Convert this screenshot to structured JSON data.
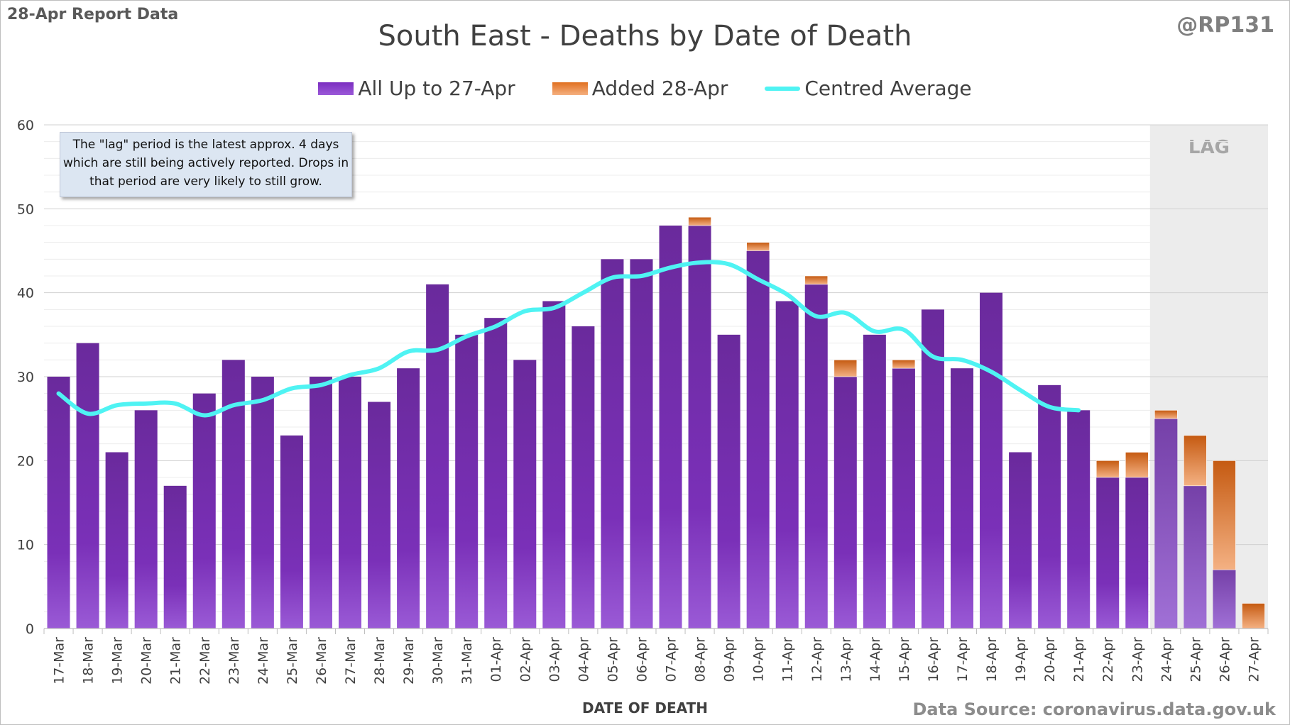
{
  "header": {
    "report_label": "28-Apr Report Data",
    "handle": "@RP131"
  },
  "note": {
    "text": "The \"lag\" period is the latest approx. 4 days which are still being actively reported.  Drops in that period are very likely to still grow."
  },
  "footer": {
    "source": "Data Source: coronavirus.data.gov.uk"
  },
  "chart_data": {
    "type": "bar",
    "stacked": true,
    "title": "South East - Deaths by Date of Death",
    "xlabel": "DATE OF DEATH",
    "ylabel": "",
    "ylim": [
      0,
      60
    ],
    "yticks": [
      0,
      10,
      20,
      30,
      40,
      50,
      60
    ],
    "grid": true,
    "legend_position": "top-center",
    "lag_label": "LAG",
    "lag_categories": [
      "24-Apr",
      "25-Apr",
      "26-Apr",
      "27-Apr"
    ],
    "categories": [
      "17-Mar",
      "18-Mar",
      "19-Mar",
      "20-Mar",
      "21-Mar",
      "22-Mar",
      "23-Mar",
      "24-Mar",
      "25-Mar",
      "26-Mar",
      "27-Mar",
      "28-Mar",
      "29-Mar",
      "30-Mar",
      "31-Mar",
      "01-Apr",
      "02-Apr",
      "03-Apr",
      "04-Apr",
      "05-Apr",
      "06-Apr",
      "07-Apr",
      "08-Apr",
      "09-Apr",
      "10-Apr",
      "11-Apr",
      "12-Apr",
      "13-Apr",
      "14-Apr",
      "15-Apr",
      "16-Apr",
      "17-Apr",
      "18-Apr",
      "19-Apr",
      "20-Apr",
      "21-Apr",
      "22-Apr",
      "23-Apr",
      "24-Apr",
      "25-Apr",
      "26-Apr",
      "27-Apr"
    ],
    "series": [
      {
        "name": "All Up to 27-Apr",
        "color": "#7030a0",
        "values": [
          30,
          34,
          21,
          26,
          17,
          28,
          32,
          30,
          23,
          30,
          30,
          27,
          31,
          41,
          35,
          37,
          32,
          39,
          36,
          44,
          44,
          48,
          48,
          35,
          45,
          39,
          41,
          30,
          35,
          31,
          38,
          31,
          40,
          21,
          29,
          26,
          18,
          18,
          25,
          17,
          7,
          0
        ]
      },
      {
        "name": "Added 28-Apr",
        "color": "#ed7d31",
        "values": [
          0,
          0,
          0,
          0,
          0,
          0,
          0,
          0,
          0,
          0,
          0,
          0,
          0,
          0,
          0,
          0,
          0,
          0,
          0,
          0,
          0,
          0,
          1,
          0,
          1,
          0,
          1,
          2,
          0,
          1,
          0,
          0,
          0,
          0,
          0,
          0,
          2,
          3,
          1,
          6,
          13,
          3
        ]
      },
      {
        "name": "Centred Average",
        "type": "line",
        "color": "#4ff3f3",
        "values": [
          28,
          25.6,
          26.6,
          26.8,
          26.8,
          25.4,
          26.6,
          27.2,
          28.6,
          29,
          30.2,
          31,
          33,
          33.2,
          34.8,
          36,
          37.8,
          38.2,
          40,
          41.8,
          42,
          43,
          43.6,
          43.4,
          41.6,
          39.8,
          37.2,
          37.6,
          35.4,
          35.6,
          32.4,
          32,
          30.6,
          28.4,
          26.4,
          26,
          null,
          null,
          null,
          null,
          null,
          null
        ]
      }
    ]
  }
}
